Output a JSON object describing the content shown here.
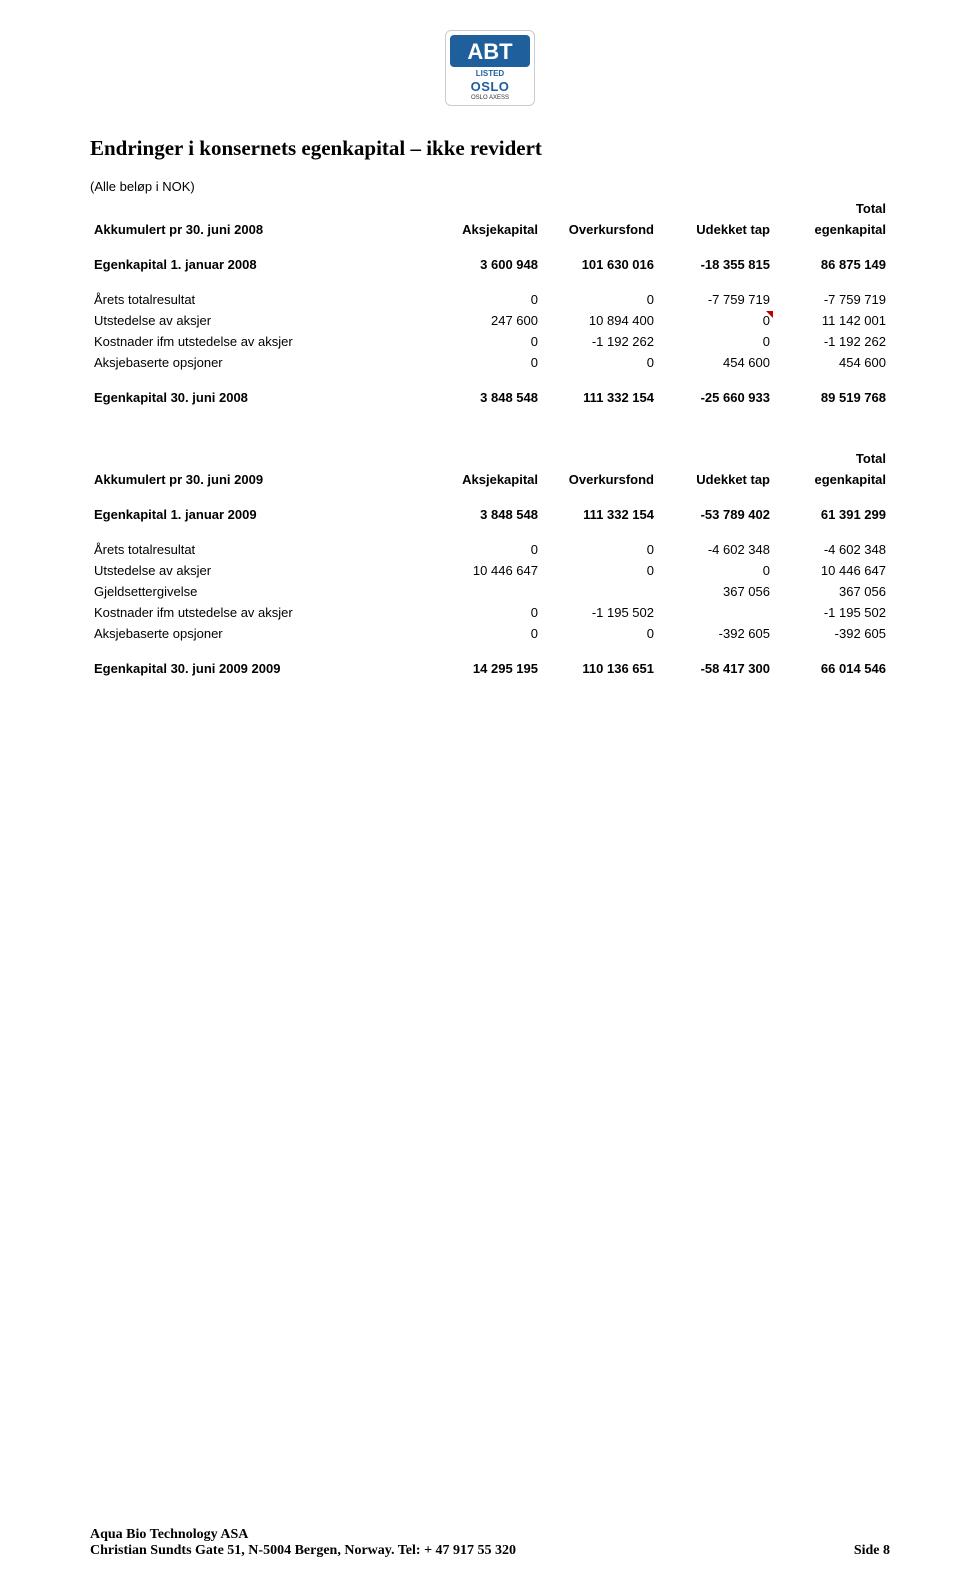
{
  "logo": {
    "abbr": "ABT",
    "listed": "LISTED",
    "exchange": "OSLO",
    "subline": "OSLO AXESS"
  },
  "title": "Endringer i konsernets egenkapital – ikke revidert",
  "note": "(Alle beløp i NOK)",
  "columns": {
    "col1": "Aksjekapital",
    "col2": "Overkursfond",
    "col3": "Udekket tap",
    "col4_top": "Total",
    "col4_bottom": "egenkapital"
  },
  "t2008": {
    "header_label": "Akkumulert pr 30. juni 2008",
    "open_label": "Egenkapital 1. januar 2008",
    "open": [
      "3 600 948",
      "101 630 016",
      "-18 355 815",
      "86 875 149"
    ],
    "rows": [
      {
        "label": "Årets totalresultat",
        "v": [
          "0",
          "0",
          "-7 759 719",
          "-7 759 719"
        ],
        "flag": null
      },
      {
        "label": "Utstedelse av aksjer",
        "v": [
          "247 600",
          "10 894 400",
          "0",
          "11 142 001"
        ],
        "flag": 3
      },
      {
        "label": "Kostnader ifm utstedelse av aksjer",
        "v": [
          "0",
          "-1 192 262",
          "0",
          "-1 192 262"
        ],
        "flag": null
      },
      {
        "label": "Aksjebaserte opsjoner",
        "v": [
          "0",
          "0",
          "454 600",
          "454 600"
        ],
        "flag": null
      }
    ],
    "close_label": "Egenkapital 30. juni 2008",
    "close": [
      "3 848 548",
      "111 332 154",
      "-25 660 933",
      "89 519 768"
    ]
  },
  "t2009": {
    "header_label": "Akkumulert pr 30. juni 2009",
    "open_label": "Egenkapital 1. januar 2009",
    "open": [
      "3 848 548",
      "111 332 154",
      "-53 789 402",
      "61 391 299"
    ],
    "rows": [
      {
        "label": "Årets totalresultat",
        "v": [
          "0",
          "0",
          "-4 602 348",
          "-4 602 348"
        ],
        "flag": null
      },
      {
        "label": "Utstedelse av aksjer",
        "v": [
          "10 446 647",
          "0",
          "0",
          "10 446 647"
        ],
        "flag": null
      },
      {
        "label": "Gjeldsettergivelse",
        "v": [
          "",
          "",
          "367 056",
          "367 056"
        ],
        "flag": null
      },
      {
        "label": "Kostnader ifm utstedelse av aksjer",
        "v": [
          "0",
          "-1 195 502",
          "",
          "-1 195 502"
        ],
        "flag": null
      },
      {
        "label": "Aksjebaserte opsjoner",
        "v": [
          "0",
          "0",
          "-392 605",
          "-392 605"
        ],
        "flag": null
      }
    ],
    "close_label": "Egenkapital 30. juni 2009 2009",
    "close": [
      "14 295 195",
      "110 136 651",
      "-58 417 300",
      "66 014 546"
    ]
  },
  "footer": {
    "company": "Aqua Bio Technology ASA",
    "address": "Christian Sundts Gate 51, N-5004 Bergen, Norway. Tel: + 47 917 55 320",
    "page": "Side 8"
  }
}
